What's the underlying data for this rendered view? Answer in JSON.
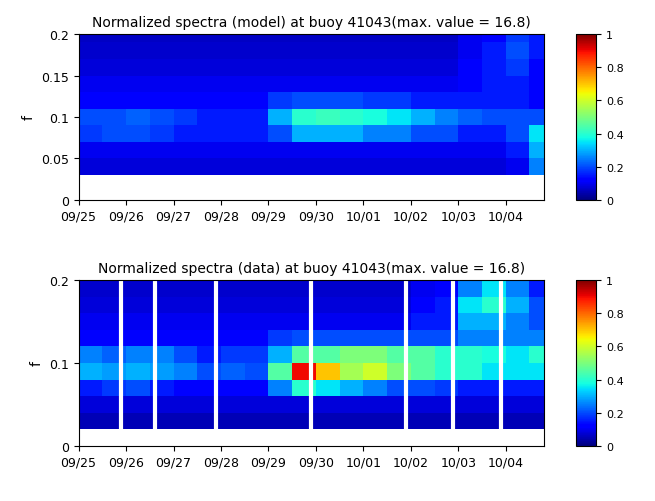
{
  "chart_data": [
    {
      "type": "heatmap",
      "title": "Normalized spectra (model) at buoy 41043(max. value = 16.8)",
      "ylabel": "f",
      "x_edges": [
        0,
        0.5,
        1,
        1.5,
        2,
        2.5,
        3,
        3.5,
        4,
        4.5,
        5,
        5.5,
        6,
        6.5,
        7,
        7.5,
        8,
        8.5,
        9,
        9.5,
        10
      ],
      "y_edges": [
        0.03,
        0.05,
        0.07,
        0.09,
        0.11,
        0.13,
        0.15,
        0.17,
        0.19,
        0.2
      ],
      "cells": [
        [
          0.08,
          0.08,
          0.08,
          0.08,
          0.08,
          0.08,
          0.08,
          0.08,
          0.08,
          0.08,
          0.08,
          0.08,
          0.08,
          0.08,
          0.08,
          0.08,
          0.08,
          0.08,
          0.1,
          0.25
        ],
        [
          0.1,
          0.1,
          0.1,
          0.1,
          0.1,
          0.1,
          0.1,
          0.1,
          0.1,
          0.1,
          0.1,
          0.1,
          0.1,
          0.1,
          0.1,
          0.1,
          0.1,
          0.1,
          0.15,
          0.3
        ],
        [
          0.18,
          0.2,
          0.2,
          0.18,
          0.15,
          0.15,
          0.15,
          0.15,
          0.2,
          0.3,
          0.3,
          0.3,
          0.25,
          0.25,
          0.2,
          0.2,
          0.15,
          0.15,
          0.2,
          0.35
        ],
        [
          0.2,
          0.2,
          0.22,
          0.2,
          0.18,
          0.15,
          0.15,
          0.15,
          0.3,
          0.4,
          0.42,
          0.4,
          0.38,
          0.35,
          0.3,
          0.25,
          0.22,
          0.2,
          0.2,
          0.2
        ],
        [
          0.12,
          0.12,
          0.12,
          0.12,
          0.12,
          0.12,
          0.12,
          0.12,
          0.18,
          0.2,
          0.2,
          0.2,
          0.18,
          0.18,
          0.15,
          0.15,
          0.15,
          0.15,
          0.15,
          0.12
        ],
        [
          0.1,
          0.1,
          0.1,
          0.1,
          0.1,
          0.1,
          0.1,
          0.1,
          0.1,
          0.1,
          0.1,
          0.1,
          0.1,
          0.1,
          0.1,
          0.1,
          0.12,
          0.15,
          0.15,
          0.12
        ],
        [
          0.08,
          0.08,
          0.08,
          0.08,
          0.08,
          0.08,
          0.08,
          0.08,
          0.08,
          0.08,
          0.08,
          0.08,
          0.08,
          0.08,
          0.08,
          0.08,
          0.12,
          0.15,
          0.18,
          0.12
        ],
        [
          0.07,
          0.07,
          0.07,
          0.07,
          0.07,
          0.07,
          0.07,
          0.07,
          0.07,
          0.07,
          0.07,
          0.07,
          0.07,
          0.07,
          0.07,
          0.07,
          0.1,
          0.15,
          0.2,
          0.15
        ],
        [
          0.06,
          0.06,
          0.06,
          0.06,
          0.06,
          0.06,
          0.06,
          0.06,
          0.06,
          0.06,
          0.06,
          0.06,
          0.06,
          0.06,
          0.06,
          0.06,
          0.1,
          0.12,
          0.18,
          0.15
        ]
      ],
      "xlim": [
        0,
        9.8
      ],
      "xticks": [
        {
          "value": 0,
          "label": "09/25"
        },
        {
          "value": 1,
          "label": "09/26"
        },
        {
          "value": 2,
          "label": "09/27"
        },
        {
          "value": 3,
          "label": "09/28"
        },
        {
          "value": 4,
          "label": "09/29"
        },
        {
          "value": 5,
          "label": "09/30"
        },
        {
          "value": 6,
          "label": "10/01"
        },
        {
          "value": 7,
          "label": "10/02"
        },
        {
          "value": 8,
          "label": "10/03"
        },
        {
          "value": 9,
          "label": "10/04"
        }
      ],
      "ylim": [
        0,
        0.2
      ],
      "yticks": [
        0,
        0.05,
        0.1,
        0.15,
        0.2
      ],
      "colorbar": {
        "range": [
          0,
          1
        ],
        "ticks": [
          0,
          0.2,
          0.4,
          0.6,
          0.8,
          1
        ]
      }
    },
    {
      "type": "heatmap",
      "title": "Normalized spectra (data) at buoy 41043(max. value = 16.8)",
      "ylabel": "f",
      "x_edges": [
        0,
        0.5,
        1,
        1.5,
        2,
        2.5,
        3,
        3.5,
        4,
        4.5,
        5,
        5.5,
        6,
        6.5,
        7,
        7.5,
        8,
        8.5,
        9,
        9.5,
        10
      ],
      "y_edges": [
        0.02,
        0.04,
        0.06,
        0.08,
        0.1,
        0.12,
        0.14,
        0.16,
        0.18,
        0.2
      ],
      "cells": [
        [
          0.05,
          0.05,
          0.05,
          0.05,
          0.05,
          0.05,
          0.05,
          0.05,
          0.05,
          0.05,
          0.05,
          0.05,
          0.05,
          0.05,
          0.05,
          0.05,
          0.05,
          0.05,
          0.05,
          0.05
        ],
        [
          0.08,
          0.08,
          0.08,
          0.08,
          0.08,
          0.08,
          0.08,
          0.08,
          0.08,
          0.08,
          0.08,
          0.08,
          0.08,
          0.08,
          0.08,
          0.08,
          0.08,
          0.08,
          0.08,
          0.08
        ],
        [
          0.15,
          0.18,
          0.2,
          0.15,
          0.12,
          0.12,
          0.12,
          0.12,
          0.25,
          0.4,
          0.35,
          0.3,
          0.25,
          0.2,
          0.2,
          0.18,
          0.15,
          0.15,
          0.15,
          0.15
        ],
        [
          0.3,
          0.28,
          0.3,
          0.28,
          0.25,
          0.2,
          0.22,
          0.2,
          0.45,
          0.9,
          0.7,
          0.55,
          0.6,
          0.5,
          0.45,
          0.4,
          0.4,
          0.35,
          0.35,
          0.35
        ],
        [
          0.25,
          0.22,
          0.25,
          0.25,
          0.2,
          0.15,
          0.18,
          0.18,
          0.3,
          0.45,
          0.45,
          0.5,
          0.5,
          0.45,
          0.45,
          0.4,
          0.4,
          0.38,
          0.35,
          0.4
        ],
        [
          0.12,
          0.12,
          0.12,
          0.12,
          0.12,
          0.12,
          0.12,
          0.12,
          0.18,
          0.2,
          0.2,
          0.2,
          0.2,
          0.2,
          0.2,
          0.2,
          0.25,
          0.25,
          0.25,
          0.25
        ],
        [
          0.1,
          0.1,
          0.1,
          0.1,
          0.1,
          0.1,
          0.1,
          0.1,
          0.1,
          0.1,
          0.1,
          0.1,
          0.1,
          0.1,
          0.15,
          0.15,
          0.3,
          0.3,
          0.25,
          0.2
        ],
        [
          0.08,
          0.08,
          0.08,
          0.08,
          0.08,
          0.08,
          0.08,
          0.08,
          0.08,
          0.08,
          0.08,
          0.08,
          0.08,
          0.08,
          0.12,
          0.15,
          0.35,
          0.4,
          0.3,
          0.2
        ],
        [
          0.07,
          0.07,
          0.07,
          0.07,
          0.07,
          0.07,
          0.07,
          0.07,
          0.07,
          0.07,
          0.07,
          0.07,
          0.07,
          0.07,
          0.1,
          0.12,
          0.25,
          0.35,
          0.25,
          0.15
        ]
      ],
      "gaps": [
        0.9,
        1.6,
        2.9,
        4.9,
        6.9,
        7.9,
        8.9
      ],
      "xlim": [
        0,
        9.8
      ],
      "xticks": [
        {
          "value": 0,
          "label": "09/25"
        },
        {
          "value": 1,
          "label": "09/26"
        },
        {
          "value": 2,
          "label": "09/27"
        },
        {
          "value": 3,
          "label": "09/28"
        },
        {
          "value": 4,
          "label": "09/29"
        },
        {
          "value": 5,
          "label": "09/30"
        },
        {
          "value": 6,
          "label": "10/01"
        },
        {
          "value": 7,
          "label": "10/02"
        },
        {
          "value": 8,
          "label": "10/03"
        },
        {
          "value": 9,
          "label": "10/04"
        }
      ],
      "ylim": [
        0,
        0.2
      ],
      "yticks": [
        0,
        0.1,
        0.2
      ],
      "colorbar": {
        "range": [
          0,
          1
        ],
        "ticks": [
          0,
          0.2,
          0.4,
          0.6,
          0.8,
          1
        ]
      }
    }
  ]
}
